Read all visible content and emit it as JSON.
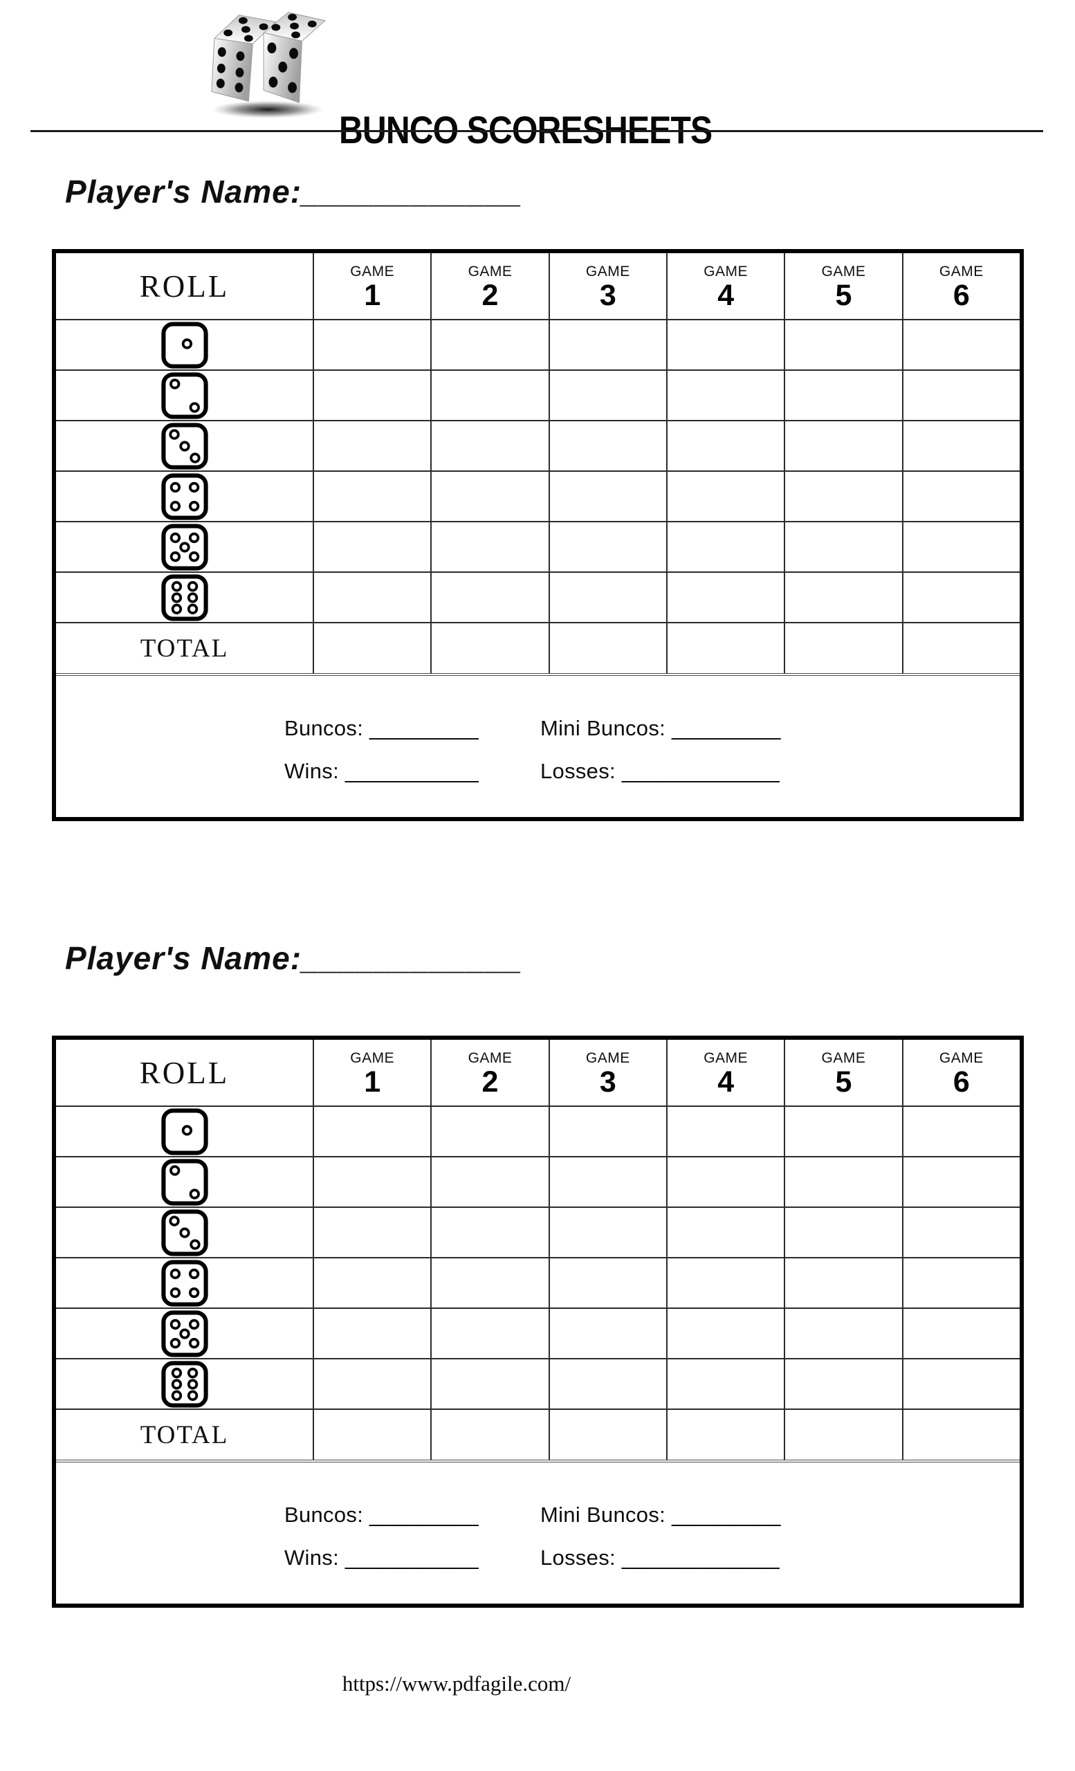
{
  "header": {
    "title": "BUNCO SCORESHEETS",
    "logo_icon": "two-dice-with-shadow"
  },
  "colors": {
    "ink": "#000000",
    "grid_line": "#2b2b2b",
    "total_divider": "#4a4a4a"
  },
  "sheets": [
    {
      "player_name_label": "Player's Name:____________",
      "table": {
        "roll_header": "ROLL",
        "games": [
          {
            "label": "GAME",
            "number": "1"
          },
          {
            "label": "GAME",
            "number": "2"
          },
          {
            "label": "GAME",
            "number": "3"
          },
          {
            "label": "GAME",
            "number": "4"
          },
          {
            "label": "GAME",
            "number": "5"
          },
          {
            "label": "GAME",
            "number": "6"
          }
        ],
        "dice_rows": [
          {
            "face": 1
          },
          {
            "face": 2
          },
          {
            "face": 3
          },
          {
            "face": 4
          },
          {
            "face": 5
          },
          {
            "face": 6
          }
        ],
        "total_label": "TOTAL"
      },
      "summary": {
        "buncos_label": "Buncos: _________",
        "mini_buncos_label": "Mini Buncos: _________",
        "wins_label": "Wins: ___________",
        "losses_label": "Losses: _____________"
      }
    },
    {
      "player_name_label": "Player's Name:____________",
      "table": {
        "roll_header": "ROLL",
        "games": [
          {
            "label": "GAME",
            "number": "1"
          },
          {
            "label": "GAME",
            "number": "2"
          },
          {
            "label": "GAME",
            "number": "3"
          },
          {
            "label": "GAME",
            "number": "4"
          },
          {
            "label": "GAME",
            "number": "5"
          },
          {
            "label": "GAME",
            "number": "6"
          }
        ],
        "dice_rows": [
          {
            "face": 1
          },
          {
            "face": 2
          },
          {
            "face": 3
          },
          {
            "face": 4
          },
          {
            "face": 5
          },
          {
            "face": 6
          }
        ],
        "total_label": "TOTAL"
      },
      "summary": {
        "buncos_label": "Buncos: _________",
        "mini_buncos_label": "Mini Buncos: _________",
        "wins_label": "Wins: ___________",
        "losses_label": "Losses: _____________"
      }
    }
  ],
  "footer": {
    "url": "https://www.pdfagile.com/"
  }
}
